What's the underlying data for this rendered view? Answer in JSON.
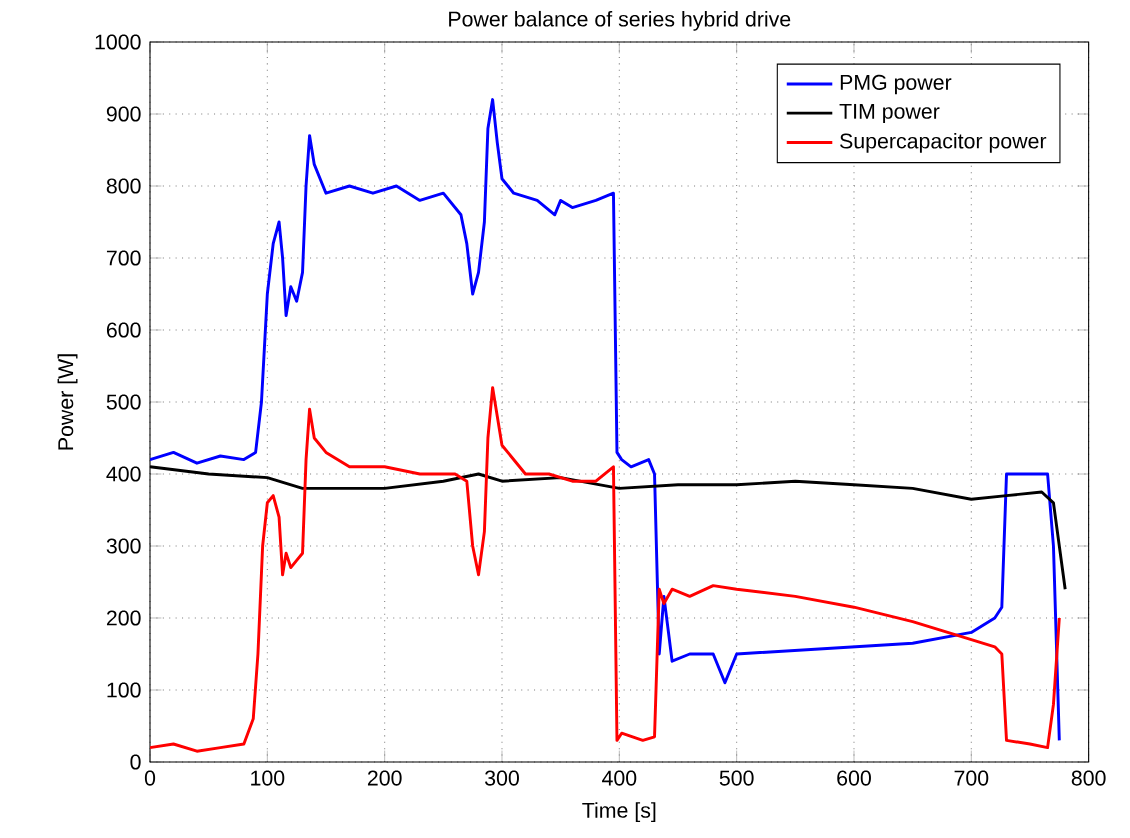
{
  "chart_data": {
    "type": "line",
    "title": "Power balance of series hybrid drive",
    "xlabel": "Time [s]",
    "ylabel": "Power [W]",
    "xlim": [
      0,
      800
    ],
    "ylim": [
      0,
      1000
    ],
    "xticks": [
      0,
      100,
      200,
      300,
      400,
      500,
      600,
      700,
      800
    ],
    "yticks": [
      0,
      100,
      200,
      300,
      400,
      500,
      600,
      700,
      800,
      900,
      1000
    ],
    "grid": true,
    "legend": "top right",
    "series": [
      {
        "name": "PMG power",
        "color": "#0000ff",
        "x": [
          0,
          20,
          40,
          60,
          80,
          90,
          95,
          100,
          105,
          110,
          113,
          116,
          120,
          125,
          130,
          133,
          136,
          140,
          150,
          170,
          190,
          210,
          230,
          250,
          265,
          270,
          275,
          280,
          285,
          288,
          292,
          296,
          300,
          310,
          330,
          345,
          350,
          360,
          380,
          395,
          398,
          402,
          410,
          425,
          430,
          434,
          438,
          445,
          460,
          480,
          490,
          500,
          550,
          600,
          650,
          700,
          720,
          726,
          730,
          750,
          765,
          770,
          775
        ],
        "values": [
          420,
          430,
          415,
          425,
          420,
          430,
          500,
          650,
          720,
          750,
          700,
          620,
          660,
          640,
          680,
          800,
          870,
          830,
          790,
          800,
          790,
          800,
          780,
          790,
          760,
          720,
          650,
          680,
          750,
          880,
          920,
          860,
          810,
          790,
          780,
          760,
          780,
          770,
          780,
          790,
          430,
          420,
          410,
          420,
          400,
          150,
          230,
          140,
          150,
          150,
          110,
          150,
          155,
          160,
          165,
          180,
          200,
          215,
          400,
          400,
          400,
          300,
          30
        ]
      },
      {
        "name": "TIM power",
        "color": "#000000",
        "x": [
          0,
          50,
          100,
          130,
          200,
          250,
          280,
          300,
          350,
          400,
          450,
          500,
          550,
          600,
          650,
          700,
          730,
          760,
          770,
          775,
          780
        ],
        "values": [
          410,
          400,
          395,
          380,
          380,
          390,
          400,
          390,
          395,
          380,
          385,
          385,
          390,
          385,
          380,
          365,
          370,
          375,
          360,
          300,
          240
        ]
      },
      {
        "name": "Supercapacitor power",
        "color": "#ff0000",
        "x": [
          0,
          20,
          40,
          60,
          80,
          88,
          92,
          96,
          100,
          105,
          110,
          113,
          116,
          120,
          125,
          130,
          133,
          136,
          140,
          150,
          170,
          200,
          230,
          260,
          270,
          275,
          280,
          285,
          288,
          292,
          296,
          300,
          320,
          340,
          360,
          380,
          395,
          398,
          402,
          420,
          430,
          434,
          438,
          445,
          460,
          480,
          500,
          550,
          600,
          650,
          700,
          720,
          726,
          730,
          750,
          765,
          770,
          775
        ],
        "values": [
          20,
          25,
          15,
          20,
          25,
          60,
          150,
          300,
          360,
          370,
          340,
          260,
          290,
          270,
          280,
          290,
          420,
          490,
          450,
          430,
          410,
          410,
          400,
          400,
          390,
          300,
          260,
          320,
          450,
          520,
          480,
          440,
          400,
          400,
          390,
          390,
          410,
          30,
          40,
          30,
          35,
          240,
          220,
          240,
          230,
          245,
          240,
          230,
          215,
          195,
          170,
          160,
          150,
          30,
          25,
          20,
          80,
          200
        ]
      }
    ]
  }
}
